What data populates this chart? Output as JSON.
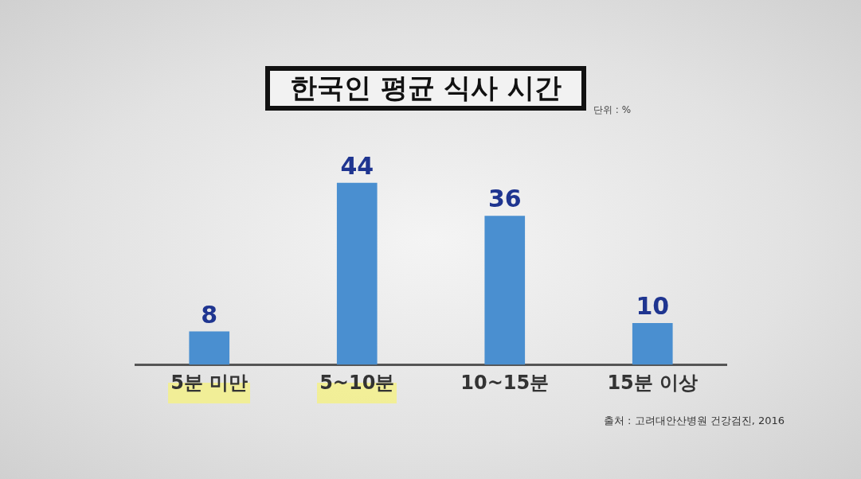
{
  "chart_data": {
    "type": "bar",
    "title": "한국인 평균 식사 시간",
    "subtitle": "단위 : %",
    "categories": [
      "5분 미만",
      "5~10분",
      "10~15분",
      "15분 이상"
    ],
    "values": [
      8,
      44,
      36,
      10
    ],
    "color": "#4a8fd0",
    "data_labels": true,
    "grid": false,
    "legend": false,
    "tick_labels": "x",
    "annotations": [
      "출처 : 고려대안산병원 건강검진, 2016"
    ]
  }
}
